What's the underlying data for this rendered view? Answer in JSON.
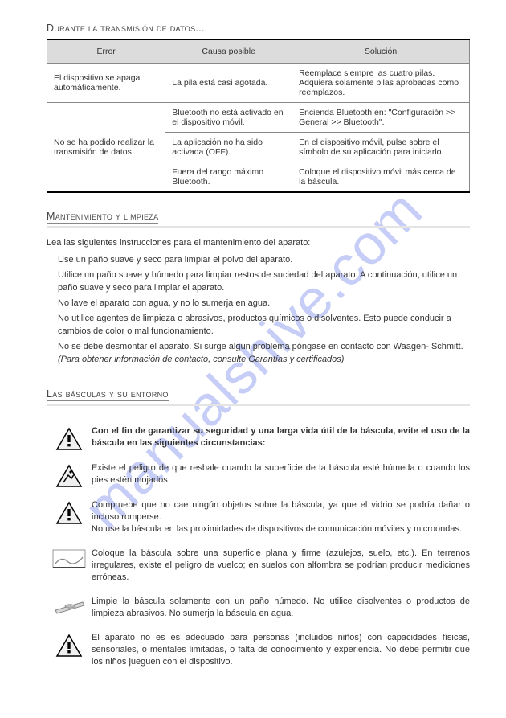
{
  "watermark": "manualshive.com",
  "section1": {
    "title": "Durante la transmisión de datos..."
  },
  "table": {
    "headers": [
      "Error",
      "Causa posible",
      "Solución"
    ],
    "rows": [
      {
        "error": "El dispositivo se apaga automáticamente.",
        "cause": "La pila está casi agotada.",
        "solution": "Reemplace siempre las cuatro pilas. Adquiera solamente pilas aprobadas como reemplazos."
      },
      {
        "error": "No se ha podido realizar la transmisión de datos.",
        "cause": "Bluetooth no está activado en el dispositivo móvil.",
        "solution": "Encienda Bluetooth en: \"Configuración >> General >> Bluetooth\"."
      },
      {
        "error": "",
        "cause": "La aplicación no ha sido activada (OFF).",
        "solution": "En el dispositivo móvil, pulse sobre el símbolo de su aplicación para iniciarlo."
      },
      {
        "error": "",
        "cause": "Fuera del rango máximo Bluetooth.",
        "solution": "Coloque el dispositivo móvil más cerca de la báscula."
      }
    ]
  },
  "section2": {
    "title": "Mantenimiento y limpieza",
    "intro": "Lea las siguientes instrucciones para el mantenimiento del aparato:",
    "items": [
      "Use un paño suave y seco para limpiar el polvo del aparato.",
      "Utilice un paño suave y húmedo para limpiar restos de suciedad del aparato. A continuación, utilice un paño suave y seco para limpiar el aparato.",
      "No lave el aparato con agua, y no lo sumerja en agua.",
      "No utilice agentes de limpieza o abrasivos, productos químicos o disolventes. Esto puede conducir a cambios de color o mal funcionamiento.",
      "No se debe desmontar el aparato. Si surge algún problema póngase en contacto con Waagen- Schmitt."
    ],
    "items_tail_italic": " (Para obtener información de contacto, consulte Garantías y certificados)"
  },
  "section3": {
    "title": "Las básculas y su entorno",
    "warnings": [
      {
        "icon": "triangle-exclaim",
        "text": "Con el fin de garantizar su seguridad y una larga vida útil de la báscula, evite el uso de la báscula en las siguientes circunstancias:",
        "bold": true
      },
      {
        "icon": "triangle-slip",
        "text": "Existe el peligro de que resbale cuando la superficie de la báscula esté húmeda o cuando los pies estén mojados."
      },
      {
        "icon": "triangle-exclaim",
        "text": "Compruebe que no cae ningún objetos sobre la báscula, ya que el vidrio se podría dañar o incluso romperse.\nNo use la báscula en las proximidades de dispositivos de comunicación móviles y microondas."
      },
      {
        "icon": "surface",
        "text": "Coloque la báscula sobre una superficie plana y firme (azulejos, suelo, etc.). En terrenos irregulares, existe el peligro de vuelco; en suelos con alfombra se podrían producir mediciones erróneas."
      },
      {
        "icon": "scale",
        "text": "Limpie la báscula solamente con un paño húmedo. No utilice disolventes o productos de limpieza abrasivos. No sumerja la báscula en agua."
      },
      {
        "icon": "triangle-exclaim",
        "text": "El aparato no es es adecuado para personas (incluidos niños) con capacidades físicas, sensoriales, o mentales limitadas, o falta de conocimiento y experiencia. No debe permitir que los niños jueguen con el dispositivo."
      }
    ]
  },
  "colors": {
    "watermark": "#6b7de8",
    "table_header_bg": "#dcdcdc",
    "border": "#888888",
    "text": "#333333"
  }
}
